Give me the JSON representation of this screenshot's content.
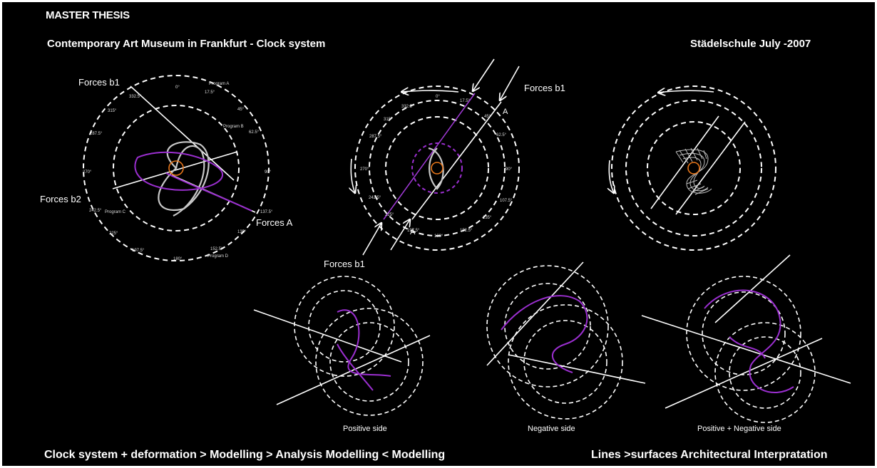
{
  "header": {
    "title": "MASTER THESIS",
    "subtitle": "Contemporary Art Museum in Frankfurt - Clock system",
    "right_caption": "Städelschule July -2007"
  },
  "diagram1": {
    "label_forces_b1": "Forces  b1",
    "label_forces_b2": "Forces  b2",
    "label_forces_a": "Forces A",
    "ticks": {
      "t0": "0°",
      "t17": "17.5°",
      "t45": "45°",
      "t62": "62.5°",
      "t90": "90°",
      "t137": "137.5°",
      "t135": "135°",
      "t152": "152.5°",
      "t180": "180°",
      "t197": "197.5°",
      "t225": "225°",
      "t242": "242.5°",
      "t270": "270°",
      "t287": "287.5°",
      "t315": "315°",
      "t332": "332.5°"
    },
    "programs": {
      "a": "Program A",
      "b": "Program B",
      "c": "Program C",
      "d": "Program D"
    }
  },
  "diagram2": {
    "label_forces_b1_top": "Forces  b1",
    "label_forces_b1_bottom": "Forces  b1",
    "label_a_top": "A",
    "label_a_bottom": "A",
    "ticks": {
      "t0": "0°",
      "t17": "17.5°",
      "t45": "45°",
      "t62": "62.5°",
      "t90": "90°",
      "t107": "107.5°",
      "t135": "135°",
      "t152": "152.5°",
      "t180": "180°",
      "t197": "197.5°",
      "t225": "225°",
      "t242": "242.5°",
      "t270": "270°",
      "t287": "287.5°",
      "t315": "315°",
      "t332": "332.5°"
    }
  },
  "captions": {
    "positive": "Positive side",
    "negative": "Negative side",
    "combined": "Positive  +  Negative side"
  },
  "footer": {
    "left": "Clock system + deformation  >  Modelling   >  Analysis Modelling   <  Modelling",
    "right": "Lines >surfaces  Architectural Interpratation"
  },
  "colors": {
    "background": "#000000",
    "text": "#ffffff",
    "accent_purple": "#9b2fd0",
    "center_orange": "#e8761a",
    "grey_stroke": "#c8c8c8"
  }
}
